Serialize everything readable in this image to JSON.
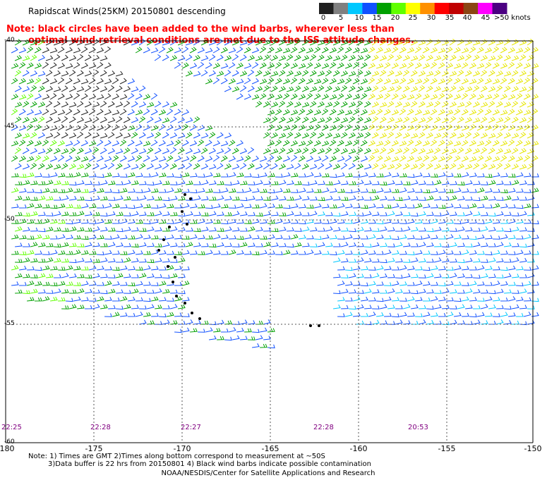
{
  "title": "Rapidscat Winds(25KM) 20150801 descending",
  "note_line1": "Note: black circles have been added to the wind barbs, wherever less than",
  "note_line2": "optimal wind retrieval conditions are met due to the ISS attitude changes.",
  "colorbar": {
    "labels": [
      "0",
      "5",
      "10",
      "15",
      "20",
      "25",
      "30",
      "35",
      "40",
      "45",
      ">50 knots"
    ],
    "colors": [
      "#202020",
      "#808080",
      "#00c8ff",
      "#1050ff",
      "#00a000",
      "#60ff00",
      "#ffff00",
      "#ff9000",
      "#ff0000",
      "#c00000",
      "#8b4513",
      "#ff00ff",
      "#4b0082"
    ]
  },
  "lat_labels": [
    "-40",
    "-45",
    "-50",
    "-55",
    "-60"
  ],
  "lon_labels": [
    "-180",
    "-175",
    "-170",
    "-165",
    "-160",
    "-155",
    "-150"
  ],
  "time_labels": [
    {
      "text": "22:25",
      "color": "purple"
    },
    {
      "text": "22:28",
      "color": "purple"
    },
    {
      "text": "22:27",
      "color": "purple"
    },
    {
      "text": "22:28",
      "color": "purple"
    },
    {
      "text": "20:53",
      "color": "purple"
    }
  ],
  "footnote1": "Note: 1) Times are GMT 2)Times along bottom correspond to measurement at ~50S",
  "footnote2": "3)Data buffer is 22 hrs from 20150801 4) Black wind barbs indicate possible contamination",
  "credit": "NOAA/NESDIS/Center for Satellite Applications and Research"
}
